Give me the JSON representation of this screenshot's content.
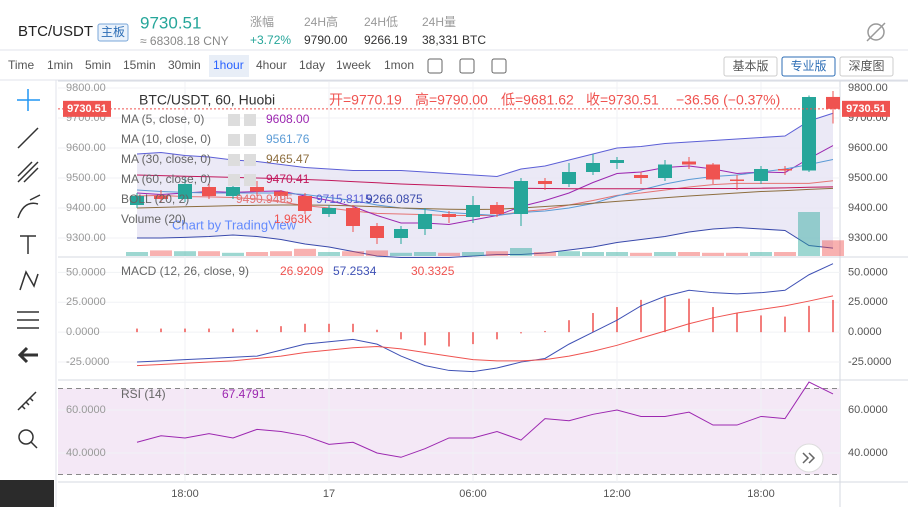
{
  "header": {
    "pair": "BTC/USDT",
    "badge": "主板",
    "price": "9730.51",
    "cny": "≈ 68308.18 CNY",
    "stats": [
      {
        "label": "涨幅",
        "value": "+3.72%"
      },
      {
        "label": "24H高",
        "value": "9790.00"
      },
      {
        "label": "24H低",
        "value": "9266.19"
      },
      {
        "label": "24H量",
        "value": "38,331 BTC"
      }
    ]
  },
  "toolbar": {
    "intervals": [
      "Time",
      "1min",
      "5min",
      "15min",
      "30min",
      "1hour",
      "4hour",
      "1day",
      "1week",
      "1mon"
    ],
    "selected_interval": 5,
    "views": [
      "基本版",
      "专业版",
      "深度图"
    ],
    "selected_view": 1
  },
  "chart_data": {
    "type": "candlestick",
    "symbol_legend": "BTC/USDT, 60, Huobi",
    "ohlc_legend": [
      "开=9770.19",
      "高=9790.00",
      "低=9681.62",
      "收=9730.51",
      "−36.56 (−0.37%)"
    ],
    "watermark": "Chart by TradingView",
    "up_color": "#26a69a",
    "down_color": "#ef5350",
    "open": [
      9410,
      9440,
      9430,
      9470,
      9440,
      9470,
      9455,
      9440,
      9380,
      9400,
      9340,
      9300,
      9330,
      9380,
      9370,
      9410,
      9380,
      9490,
      9480,
      9520,
      9550,
      9510,
      9500,
      9555,
      9545,
      9495,
      9490,
      9530,
      9525,
      9770.19
    ],
    "high": [
      9450,
      9460,
      9500,
      9480,
      9480,
      9490,
      9460,
      9450,
      9410,
      9410,
      9350,
      9340,
      9400,
      9390,
      9440,
      9420,
      9500,
      9500,
      9550,
      9580,
      9570,
      9520,
      9560,
      9570,
      9550,
      9510,
      9540,
      9540,
      9775,
      9790
    ],
    "low": [
      9400,
      9420,
      9420,
      9430,
      9430,
      9440,
      9420,
      9380,
      9370,
      9320,
      9280,
      9280,
      9310,
      9350,
      9350,
      9370,
      9340,
      9460,
      9470,
      9510,
      9530,
      9480,
      9490,
      9530,
      9480,
      9460,
      9480,
      9510,
      9520,
      9681.62
    ],
    "close": [
      9440,
      9430,
      9480,
      9440,
      9470,
      9455,
      9440,
      9390,
      9400,
      9340,
      9300,
      9330,
      9380,
      9370,
      9410,
      9380,
      9490,
      9480,
      9520,
      9550,
      9560,
      9500,
      9545,
      9545,
      9495,
      9490,
      9530,
      9525,
      9770,
      9730.51
    ],
    "ylim": [
      9240,
      9820
    ],
    "yticks": [
      {
        "value": 9800,
        "label": "9800.00"
      },
      {
        "value": 9700,
        "label": "9700.00"
      },
      {
        "value": 9600,
        "label": "9600.00"
      },
      {
        "value": 9500,
        "label": "9500.00"
      },
      {
        "value": 9400,
        "label": "9400.00"
      },
      {
        "value": 9300,
        "label": "9300.00"
      }
    ],
    "current_price": {
      "value": 9730.51,
      "label": "9730.51"
    },
    "xticks": [
      {
        "value": 2,
        "label": "18:00"
      },
      {
        "value": 8,
        "label": "17"
      },
      {
        "value": 14,
        "label": "06:00"
      },
      {
        "value": 20,
        "label": "12:00"
      },
      {
        "value": 26,
        "label": "18:00"
      }
    ],
    "moving_averages": [
      {
        "name": "MA (5, close, 0)",
        "value_label": "9608.00",
        "color": "#9c27b0",
        "values": [
          9450,
          9445,
          9450,
          9455,
          9452,
          9455,
          9457,
          9440,
          9425,
          9405,
          9375,
          9350,
          9350,
          9345,
          9360,
          9375,
          9405,
          9425,
          9450,
          9485,
          9515,
          9520,
          9535,
          9540,
          9530,
          9515,
          9520,
          9518,
          9565,
          9608
        ]
      },
      {
        "name": "MA (10, close, 0)",
        "value_label": "9561.76",
        "color": "#5b9bd5",
        "values": [
          9460,
          9455,
          9452,
          9450,
          9450,
          9450,
          9450,
          9445,
          9435,
          9425,
          9410,
          9400,
          9395,
          9385,
          9380,
          9375,
          9385,
          9390,
          9400,
          9415,
          9440,
          9460,
          9480,
          9495,
          9505,
          9510,
          9520,
          9530,
          9545,
          9561.76
        ]
      },
      {
        "name": "MA (30, close, 0)",
        "value_label": "9465.47",
        "color": "#8d6e3f",
        "values": [
          9400,
          9402,
          9404,
          9406,
          9408,
          9409,
          9410,
          9410,
          9409,
          9407,
          9404,
          9400,
          9398,
          9396,
          9395,
          9396,
          9400,
          9405,
          9410,
          9416,
          9422,
          9428,
          9434,
          9440,
          9445,
          9450,
          9455,
          9458,
          9462,
          9465.47
        ]
      },
      {
        "name": "MA (60, close, 0)",
        "value_label": "9470.41",
        "color": "#c2185b",
        "values": [
          9510,
          9508,
          9506,
          9504,
          9502,
          9500,
          9498,
          9495,
          9492,
          9488,
          9484,
          9480,
          9477,
          9474,
          9471,
          9468,
          9466,
          9465,
          9464,
          9464,
          9464,
          9464,
          9465,
          9465,
          9465,
          9465,
          9466,
          9467,
          9469,
          9470.41
        ]
      }
    ],
    "boll": {
      "name": "BOLL (20, 2)",
      "labels": [
        "9490.9495",
        "9715.8115",
        "9266.0875"
      ],
      "mid": [
        9440,
        9442,
        9438,
        9437,
        9435,
        9430,
        9420,
        9408,
        9400,
        9390,
        9382,
        9380,
        9378,
        9375,
        9375,
        9375,
        9388,
        9395,
        9410,
        9425,
        9442,
        9450,
        9460,
        9470,
        9478,
        9482,
        9482,
        9482,
        9482,
        9490.9495
      ],
      "upper": [
        9580,
        9585,
        9575,
        9570,
        9560,
        9555,
        9545,
        9535,
        9530,
        9525,
        9525,
        9525,
        9520,
        9515,
        9510,
        9505,
        9530,
        9540,
        9560,
        9580,
        9600,
        9605,
        9615,
        9620,
        9625,
        9630,
        9635,
        9640,
        9690,
        9715.8115
      ],
      "lower": [
        9300,
        9300,
        9302,
        9305,
        9310,
        9305,
        9295,
        9280,
        9270,
        9255,
        9240,
        9235,
        9235,
        9235,
        9240,
        9245,
        9245,
        9250,
        9260,
        9270,
        9285,
        9295,
        9305,
        9320,
        9330,
        9335,
        9330,
        9325,
        9275,
        9266.0875
      ]
    },
    "volume": {
      "name": "Volume (20)",
      "label": "1.963K",
      "values": [
        0.5,
        0.7,
        0.6,
        0.6,
        0.4,
        0.5,
        0.6,
        0.9,
        0.5,
        0.6,
        0.7,
        0.4,
        0.5,
        0.4,
        0.5,
        0.6,
        1.0,
        0.5,
        0.6,
        0.5,
        0.5,
        0.4,
        0.5,
        0.5,
        0.4,
        0.4,
        0.5,
        0.5,
        5.5,
        1.963
      ]
    },
    "macd": {
      "name": "MACD (12, 26, close, 9)",
      "labels": [
        "26.9209",
        "57.2534",
        "30.3325"
      ],
      "ylim": [
        -40,
        62
      ],
      "yticks": [
        {
          "value": 50,
          "label": "50.0000"
        },
        {
          "value": 25,
          "label": "25.0000"
        },
        {
          "value": 0,
          "label": "0.0000"
        },
        {
          "value": -25,
          "label": "-25.0000"
        }
      ],
      "histogram": [
        3,
        3,
        3,
        3,
        3,
        2,
        5,
        7,
        7,
        7,
        2,
        -6,
        -11,
        -12,
        -10,
        -6,
        -1,
        1,
        10,
        16,
        21,
        27,
        29,
        28,
        21,
        16,
        14,
        13,
        22,
        26.9209
      ],
      "macd": [
        -25,
        -24,
        -23,
        -22,
        -21,
        -20,
        -15,
        -10,
        -8,
        -6,
        -10,
        -20,
        -28,
        -32,
        -33,
        -30,
        -25,
        -22,
        -10,
        0,
        10,
        22,
        30,
        35,
        33,
        32,
        33,
        35,
        48,
        57.2534
      ],
      "signal": [
        -28,
        -27,
        -26,
        -25,
        -24,
        -22,
        -20,
        -17,
        -15,
        -13,
        -12,
        -14,
        -17,
        -20,
        -23,
        -24,
        -24,
        -23,
        -20,
        -16,
        -11,
        -5,
        1,
        7,
        12,
        16,
        19,
        22,
        26,
        30.3325
      ]
    },
    "rsi": {
      "name": "RSI (14)",
      "label": "67.4791",
      "ylim": [
        26.5,
        73.5
      ],
      "bands": [
        70,
        30
      ],
      "yticks": [
        {
          "value": 60,
          "label": "60.0000"
        },
        {
          "value": 40,
          "label": "40.0000"
        }
      ],
      "values": [
        45,
        48,
        47,
        49,
        47,
        51,
        50,
        48,
        44,
        45,
        40,
        38,
        42,
        47,
        47,
        50,
        46,
        56,
        55,
        58,
        60,
        57,
        57,
        59,
        53,
        53,
        57,
        56,
        73,
        67.4791
      ]
    }
  }
}
